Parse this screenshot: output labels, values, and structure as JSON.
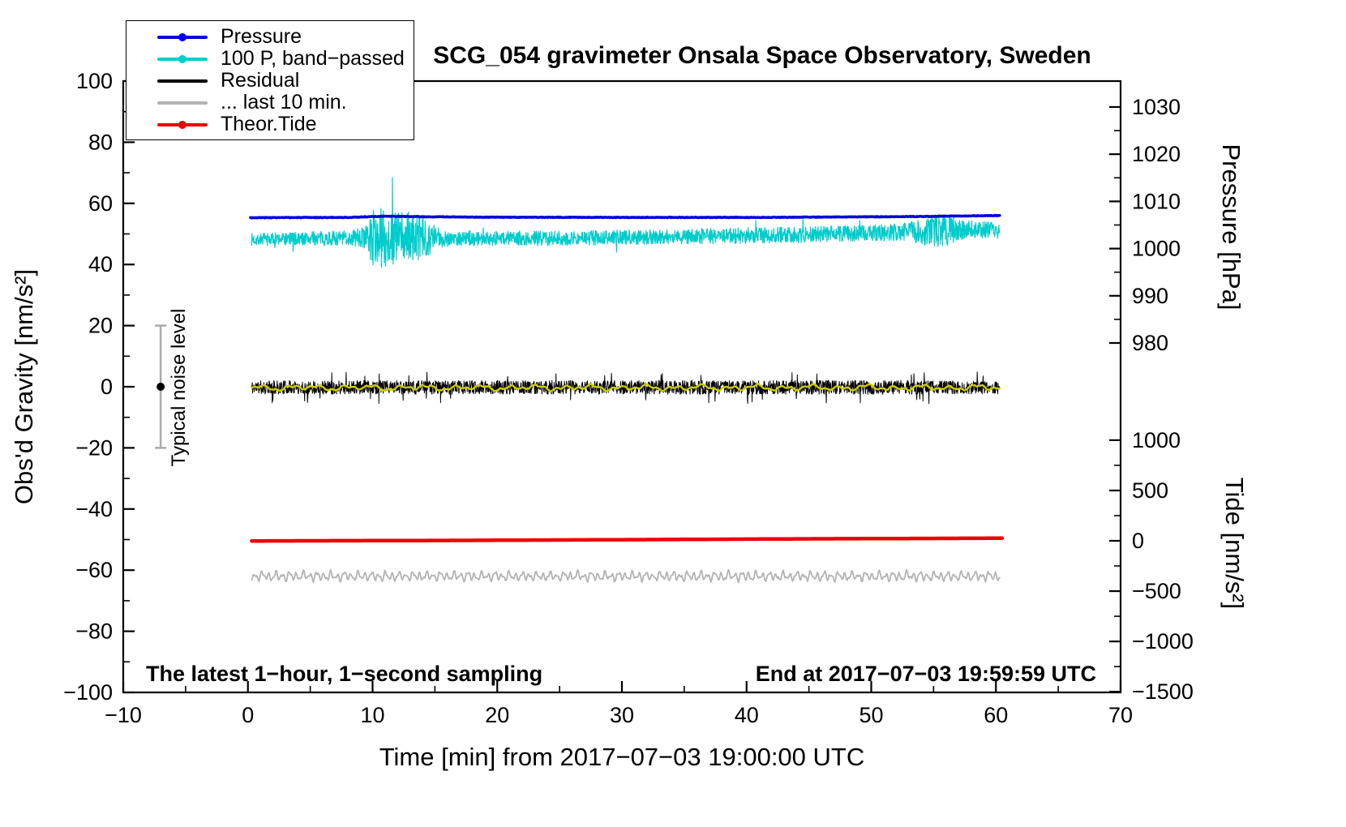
{
  "legend": {
    "items": [
      {
        "label": "Pressure",
        "color": "#0000dd",
        "dot": true
      },
      {
        "label": "100 P, band−passed",
        "color": "#00cccc",
        "dot": true
      },
      {
        "label": "Residual",
        "color": "#000000",
        "dot": false
      },
      {
        "label": "... last 10 min.",
        "color": "#b3b3b3",
        "dot": false
      },
      {
        "label": "Theor.Tide",
        "color": "#ee0000",
        "dot": true
      }
    ]
  },
  "chart_data": {
    "type": "line",
    "title": "SCG_054 gravimeter Onsala Space Observatory, Sweden",
    "xlabel": "Time [min] from 2017−07−03 19:00:00 UTC",
    "ylabel_left": "Obs'd Gravity [nm/s²]",
    "ylabel_pressure": "Pressure [hPa]",
    "ylabel_tide": "Tide [nm/s²]",
    "annotations": {
      "sampling_note": "The latest 1−hour, 1−second sampling",
      "end_note": "End at 2017−07−03 19:59:59 UTC"
    },
    "x_range": [
      -10,
      70
    ],
    "x_ticks": [
      -10,
      0,
      10,
      20,
      30,
      40,
      50,
      60,
      70
    ],
    "x_minor_ticks": [
      -5,
      5,
      15,
      25,
      35,
      45,
      55,
      65
    ],
    "y_left_range": [
      -100,
      100
    ],
    "y_left_ticks": [
      100,
      80,
      60,
      40,
      20,
      0,
      -20,
      -40,
      -60,
      -80,
      -100
    ],
    "y_left_minor_ticks": [
      90,
      70,
      50,
      30,
      10,
      -10,
      -30,
      -50,
      -70,
      -90
    ],
    "pressure_ticks": [
      1030,
      1020,
      1010,
      1000,
      990,
      980
    ],
    "pressure_minor_ticks": [
      1025,
      1015,
      1005,
      995,
      985
    ],
    "pressure_map": {
      "ref": 1000,
      "g_at_ref": 45.2,
      "g_per_unit": 1.544
    },
    "tide_ticks": [
      1000,
      500,
      0,
      -500,
      -1000,
      -1500
    ],
    "tide_minor_ticks": [
      750,
      250,
      -250,
      -750,
      -1250
    ],
    "tide_map": {
      "ref": 0,
      "g_at_ref": -50.4,
      "g_per_unit": 0.03292
    },
    "noise_bar": {
      "x": -7,
      "center": 0,
      "half_range": 20,
      "label": "Typical noise level",
      "bar_color": "#aaaaaa",
      "dot_color": "#000000"
    },
    "series": [
      {
        "id": "band_passed",
        "label": "100 P, band−passed",
        "color": "#00cccc",
        "width": 1.2,
        "axis": "gravity",
        "kind": "noisy",
        "n": 2200,
        "x_start": 0.3,
        "x_end": 60.3,
        "seed": 7,
        "spike_prob": 0.004,
        "spike_mult": 1.9,
        "center_keys": [
          [
            0,
            48.2
          ],
          [
            10,
            48.8
          ],
          [
            15,
            48.6
          ],
          [
            25,
            48.6
          ],
          [
            35,
            49.2
          ],
          [
            45,
            49.8
          ],
          [
            52,
            50.6
          ],
          [
            58,
            51.6
          ],
          [
            60,
            51.2
          ]
        ],
        "amp_keys": [
          [
            0,
            2.0
          ],
          [
            8,
            2.4
          ],
          [
            9.5,
            4
          ],
          [
            10,
            9
          ],
          [
            11,
            10
          ],
          [
            12.5,
            9
          ],
          [
            14,
            7
          ],
          [
            15.5,
            3
          ],
          [
            17,
            2.4
          ],
          [
            30,
            2.4
          ],
          [
            40,
            2.6
          ],
          [
            50,
            2.6
          ],
          [
            53,
            3
          ],
          [
            54.5,
            5.5
          ],
          [
            56,
            5.5
          ],
          [
            57.5,
            3
          ],
          [
            60,
            2.6
          ]
        ]
      },
      {
        "id": "pressure",
        "label": "Pressure",
        "color": "#0000dd",
        "width": 3.5,
        "axis": "pressure",
        "kind": "noisy",
        "n": 1200,
        "x_start": 0.2,
        "x_end": 60.3,
        "seed": 3,
        "spike_prob": 0,
        "spike_mult": 1,
        "center_keys": [
          [
            0,
            1006.55
          ],
          [
            8,
            1006.6
          ],
          [
            11,
            1006.85
          ],
          [
            14,
            1006.75
          ],
          [
            20,
            1006.65
          ],
          [
            30,
            1006.6
          ],
          [
            40,
            1006.6
          ],
          [
            48,
            1006.7
          ],
          [
            54,
            1006.8
          ],
          [
            60,
            1007.0
          ]
        ],
        "amp_keys": [
          [
            0,
            0.06
          ],
          [
            60,
            0.06
          ]
        ]
      },
      {
        "id": "residual",
        "label": "Residual",
        "color": "#000000",
        "width": 1.0,
        "axis": "gravity",
        "kind": "noisy",
        "n": 2400,
        "x_start": 0.3,
        "x_end": 60.3,
        "seed": 11,
        "spike_prob": 0.02,
        "spike_mult": 2.2,
        "center_keys": [
          [
            0,
            -0.2
          ],
          [
            60,
            -0.2
          ]
        ],
        "amp_keys": [
          [
            0,
            2.2
          ],
          [
            45,
            2.3
          ],
          [
            60,
            2.2
          ]
        ]
      },
      {
        "id": "residual_mean",
        "label": "",
        "color": "#cccc00",
        "width": 2.4,
        "axis": "gravity",
        "kind": "wavy",
        "n": 600,
        "x_start": 0.3,
        "x_end": 60.3,
        "seed": 5,
        "jitter": 0.15,
        "center": -0.3,
        "components": [
          [
            0.55,
            2.2
          ],
          [
            0.35,
            0.9
          ],
          [
            0.3,
            4.5
          ]
        ]
      },
      {
        "id": "theor_tide",
        "label": "Theor.Tide",
        "color": "#ee0000",
        "width": 4.5,
        "axis": "gravity",
        "kind": "smooth",
        "n": 200,
        "x_start": 0.3,
        "x_end": 60.5,
        "center_keys": [
          [
            0,
            -50.45
          ],
          [
            15,
            -50.3
          ],
          [
            30,
            -50.05
          ],
          [
            45,
            -49.75
          ],
          [
            60,
            -49.55
          ]
        ]
      },
      {
        "id": "last10",
        "label": "... last 10 min.",
        "color": "#b3b3b3",
        "width": 1.8,
        "axis": "gravity",
        "kind": "wavy",
        "n": 900,
        "x_start": 0.3,
        "x_end": 60.3,
        "seed": 9,
        "jitter": 0.25,
        "center": -62.0,
        "components": [
          [
            1.0,
            0.55
          ],
          [
            0.6,
            0.31
          ],
          [
            0.45,
            1.1
          ]
        ]
      }
    ]
  }
}
